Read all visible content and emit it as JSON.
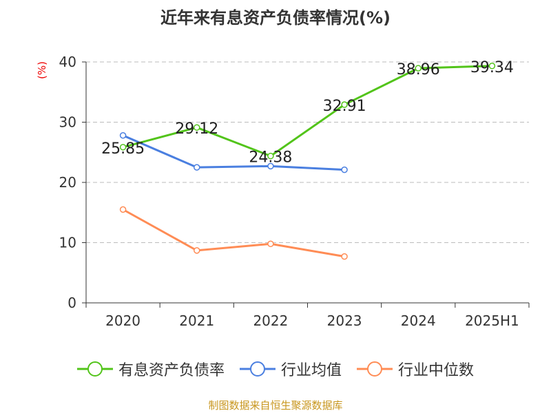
{
  "chart_data": {
    "type": "line",
    "title": "近年来有息资产负债率情况(%)",
    "ylabel": "(%)",
    "categories": [
      "2020",
      "2021",
      "2022",
      "2023",
      "2024",
      "2025H1"
    ],
    "ylim": [
      0,
      40
    ],
    "yticks": [
      0,
      10,
      20,
      30,
      40
    ],
    "grid": true,
    "legend_position": "bottom",
    "series": [
      {
        "name": "有息资产负债率",
        "color": "#52c41a",
        "values": [
          25.85,
          29.12,
          24.38,
          32.91,
          38.96,
          39.34
        ],
        "labels": [
          "25.85",
          "29.12",
          "24.38",
          "32.91",
          "38.96",
          "39.34"
        ]
      },
      {
        "name": "行业均值",
        "color": "#4a7fe0",
        "values": [
          27.8,
          22.5,
          22.7,
          22.1,
          null,
          null
        ]
      },
      {
        "name": "行业中位数",
        "color": "#ff8c55",
        "values": [
          15.5,
          8.7,
          9.8,
          7.7,
          null,
          null
        ]
      }
    ]
  },
  "source": "制图数据来自恒生聚源数据库"
}
